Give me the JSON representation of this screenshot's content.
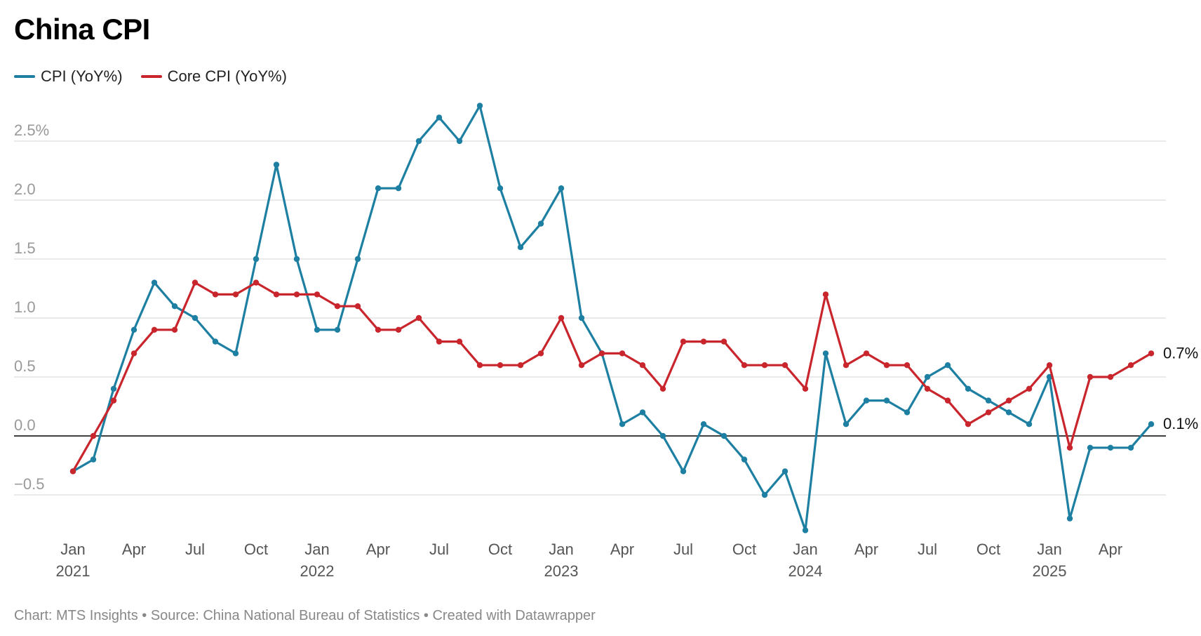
{
  "header": {
    "title": "China CPI"
  },
  "footer": {
    "text": "Chart: MTS Insights • Source: China National Bureau of Statistics • Created with Datawrapper"
  },
  "chart_data": {
    "type": "line",
    "title": "China CPI",
    "xlabel": "",
    "ylabel": "",
    "ylim": [
      -0.8,
      2.8
    ],
    "y_ticks": [
      -0.5,
      0.0,
      0.5,
      1.0,
      1.5,
      2.0,
      2.5
    ],
    "y_tick_labels": [
      "−0.5",
      "0.0",
      "0.5",
      "1.0",
      "1.5",
      "2.0",
      "2.5%"
    ],
    "x_tick_labels": [
      {
        "month": "Jan",
        "year": "2021"
      },
      {
        "month": "Apr",
        "year": ""
      },
      {
        "month": "Jul",
        "year": ""
      },
      {
        "month": "Oct",
        "year": ""
      },
      {
        "month": "Jan",
        "year": "2022"
      },
      {
        "month": "Apr",
        "year": ""
      },
      {
        "month": "Jul",
        "year": ""
      },
      {
        "month": "Oct",
        "year": ""
      },
      {
        "month": "Jan",
        "year": "2023"
      },
      {
        "month": "Apr",
        "year": ""
      },
      {
        "month": "Jul",
        "year": ""
      },
      {
        "month": "Oct",
        "year": ""
      },
      {
        "month": "Jan",
        "year": "2024"
      },
      {
        "month": "Apr",
        "year": ""
      },
      {
        "month": "Jul",
        "year": ""
      },
      {
        "month": "Oct",
        "year": ""
      },
      {
        "month": "Jan",
        "year": "2025"
      },
      {
        "month": "Apr",
        "year": ""
      }
    ],
    "x": [
      "2021-01",
      "2021-02",
      "2021-03",
      "2021-04",
      "2021-05",
      "2021-06",
      "2021-07",
      "2021-08",
      "2021-09",
      "2021-10",
      "2021-11",
      "2021-12",
      "2022-01",
      "2022-02",
      "2022-03",
      "2022-04",
      "2022-05",
      "2022-06",
      "2022-07",
      "2022-08",
      "2022-09",
      "2022-10",
      "2022-11",
      "2022-12",
      "2023-01",
      "2023-02",
      "2023-03",
      "2023-04",
      "2023-05",
      "2023-06",
      "2023-07",
      "2023-08",
      "2023-09",
      "2023-10",
      "2023-11",
      "2023-12",
      "2024-01",
      "2024-02",
      "2024-03",
      "2024-04",
      "2024-05",
      "2024-06",
      "2024-07",
      "2024-08",
      "2024-09",
      "2024-10",
      "2024-11",
      "2024-12",
      "2025-01",
      "2025-02",
      "2025-03",
      "2025-04",
      "2025-05",
      "2025-06"
    ],
    "series": [
      {
        "name": "CPI (YoY%)",
        "color": "#1d7fa1",
        "end_label": "0.1%",
        "values": [
          -0.3,
          -0.2,
          0.4,
          0.9,
          1.3,
          1.1,
          1.0,
          0.8,
          0.7,
          1.5,
          2.3,
          1.5,
          0.9,
          0.9,
          1.5,
          2.1,
          2.1,
          2.5,
          2.7,
          2.5,
          2.8,
          2.1,
          1.6,
          1.8,
          2.1,
          1.0,
          0.7,
          0.1,
          0.2,
          0.0,
          -0.3,
          0.1,
          0.0,
          -0.2,
          -0.5,
          -0.3,
          -0.8,
          0.7,
          0.1,
          0.3,
          0.3,
          0.2,
          0.5,
          0.6,
          0.4,
          0.3,
          0.2,
          0.1,
          0.5,
          -0.7,
          -0.1,
          -0.1,
          -0.1,
          0.1
        ]
      },
      {
        "name": "Core CPI (YoY%)",
        "color": "#c9252c",
        "end_label": "0.7%",
        "values": [
          -0.3,
          0.0,
          0.3,
          0.7,
          0.9,
          0.9,
          1.3,
          1.2,
          1.2,
          1.3,
          1.2,
          1.2,
          1.2,
          1.1,
          1.1,
          0.9,
          0.9,
          1.0,
          0.8,
          0.8,
          0.6,
          0.6,
          0.6,
          0.7,
          1.0,
          0.6,
          0.7,
          0.7,
          0.6,
          0.4,
          0.8,
          0.8,
          0.8,
          0.6,
          0.6,
          0.6,
          0.4,
          1.2,
          0.6,
          0.7,
          0.6,
          0.6,
          0.4,
          0.3,
          0.1,
          0.2,
          0.3,
          0.4,
          0.6,
          -0.1,
          0.5,
          0.5,
          0.6,
          0.7
        ]
      }
    ],
    "grid": true,
    "legend_position": "top-left",
    "colors": {
      "cpi": "#1d7fa1",
      "core_cpi": "#c9252c",
      "grid": "#dddddd",
      "zero_line": "#000000",
      "tick_text": "#999999",
      "axis_text": "#555555"
    }
  }
}
